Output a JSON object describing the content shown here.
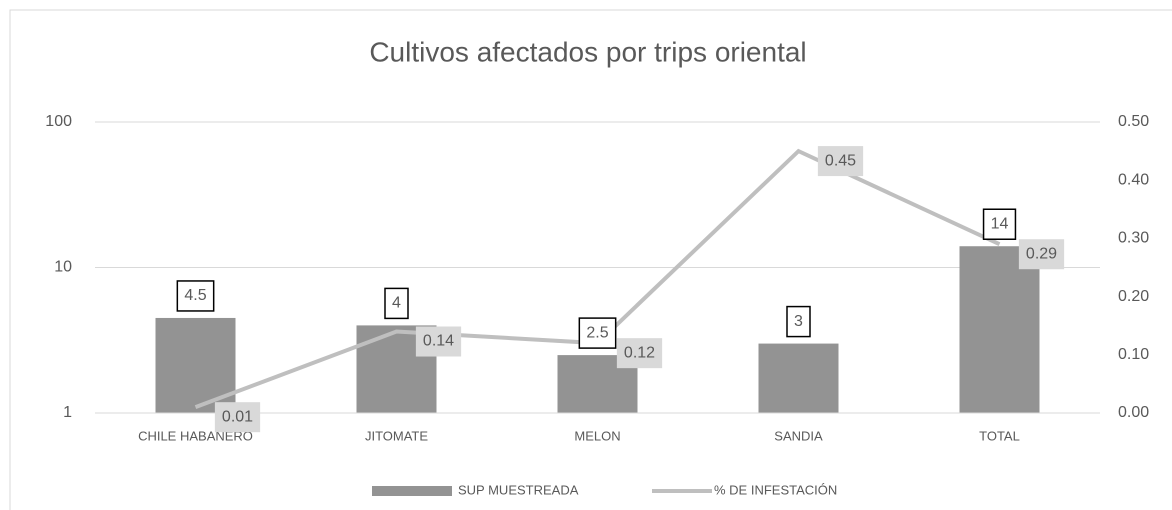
{
  "chart_data": {
    "type": "bar-line",
    "title": "Cultivos afectados por trips oriental",
    "categories": [
      "CHILE HABANERO",
      "JITOMATE",
      "MELON",
      "SANDIA",
      "TOTAL"
    ],
    "series": [
      {
        "name": "SUP MUESTREADA",
        "type": "bar",
        "color": "#939393",
        "values": [
          4.5,
          4,
          2.5,
          3,
          14
        ]
      },
      {
        "name": "% DE INFESTACIÓN",
        "type": "line",
        "axis": "y2",
        "color": "#bfbfbf",
        "values": [
          0.01,
          0.14,
          0.12,
          0.45,
          0.29
        ]
      }
    ],
    "ylim": [
      1,
      100
    ],
    "yticks": [
      1,
      10,
      100
    ],
    "yscale": "log",
    "y2lim": [
      0,
      0.5
    ],
    "y2ticks": [
      {
        "value": 0,
        "label": "0.00"
      },
      {
        "value": 0.1,
        "label": "0.10"
      },
      {
        "value": 0.2,
        "label": "0.20"
      },
      {
        "value": 0.3,
        "label": "0.30"
      },
      {
        "value": 0.4,
        "label": "0.40"
      },
      {
        "value": 0.5,
        "label": "0.50"
      }
    ],
    "grid": true,
    "legend": "bottom"
  }
}
